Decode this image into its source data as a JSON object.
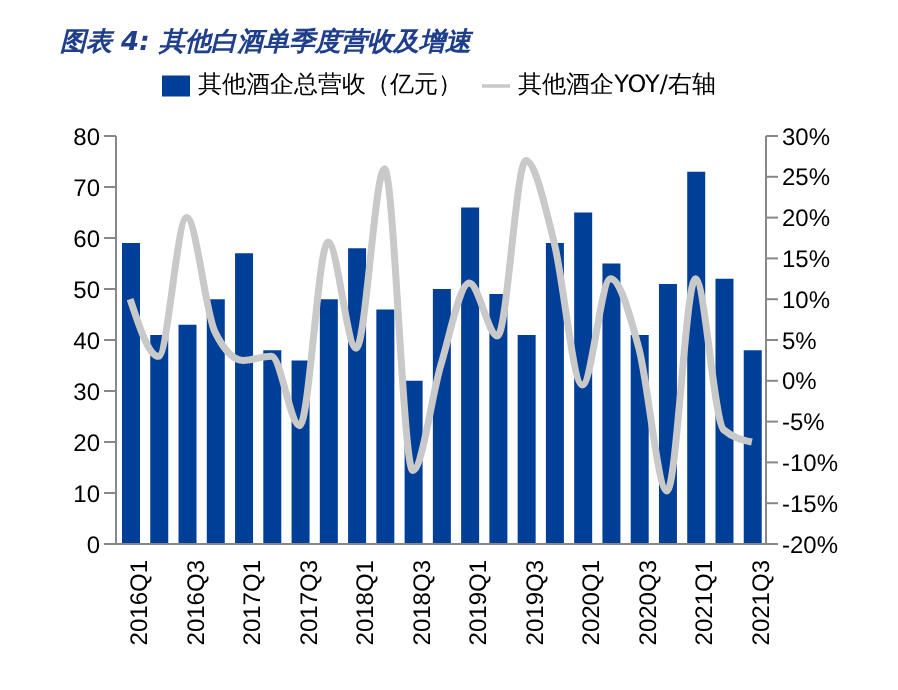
{
  "chart_data": {
    "type": "bar",
    "title": "图表 4:  其他白酒单季度营收及增速",
    "categories": [
      "2016Q1",
      null,
      "2016Q3",
      null,
      "2017Q1",
      null,
      "2017Q3",
      null,
      "2018Q1",
      null,
      "2018Q3",
      null,
      "2019Q1",
      null,
      "2019Q3",
      null,
      "2020Q1",
      null,
      "2020Q3",
      null,
      "2021Q1",
      null,
      "2021Q3"
    ],
    "series": [
      {
        "name": "其他酒企总营收（亿元）",
        "color": "#003f98",
        "values": [
          59,
          41,
          43,
          48,
          57,
          38,
          36,
          48,
          58,
          46,
          32,
          50,
          66,
          49,
          41,
          59,
          65,
          55,
          41,
          51,
          73,
          52,
          38
        ]
      },
      {
        "name": "其他酒企YOY/右轴",
        "type": "line",
        "axis": "y2",
        "color": "#c9c9c9",
        "values": [
          10,
          3,
          20,
          6,
          2.5,
          3,
          -5.5,
          17,
          4,
          26,
          -11,
          2,
          12,
          5.5,
          27,
          17,
          -0.5,
          12.5,
          4,
          -13.5,
          12.5,
          -6,
          -7.5
        ]
      }
    ],
    "ylim": [
      0,
      80
    ],
    "yticks": [
      0,
      10,
      20,
      30,
      40,
      50,
      60,
      70,
      80
    ],
    "y2lim": [
      -20,
      30
    ],
    "y2ticks": [
      {
        "value": -20,
        "label": "-20%"
      },
      {
        "value": -15,
        "label": "-15%"
      },
      {
        "value": -10,
        "label": "-10%"
      },
      {
        "value": -5,
        "label": "-5%"
      },
      {
        "value": 0,
        "label": "0%"
      },
      {
        "value": 5,
        "label": "5%"
      },
      {
        "value": 10,
        "label": "10%"
      },
      {
        "value": 15,
        "label": "15%"
      },
      {
        "value": 20,
        "label": "20%"
      },
      {
        "value": 25,
        "label": "25%"
      },
      {
        "value": 30,
        "label": "30%"
      }
    ],
    "legend": "top",
    "grid": false
  }
}
